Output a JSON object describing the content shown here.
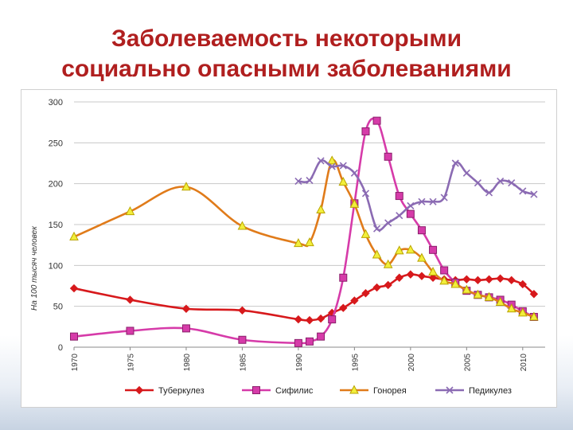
{
  "slide": {
    "title_line1": "Заболеваемость некоторыми",
    "title_line2": "социально опасными заболеваниями"
  },
  "chart_data": {
    "type": "line",
    "ylabel": "На 100 тысяч человек",
    "ylim": [
      0,
      300
    ],
    "yticks": [
      0,
      50,
      100,
      150,
      200,
      250,
      300
    ],
    "xlim": [
      1970,
      2012
    ],
    "xticks": [
      1970,
      1975,
      1980,
      1985,
      1990,
      1995,
      2000,
      2005,
      2010
    ],
    "grid": true,
    "legend_position": "bottom",
    "series": [
      {
        "name": "Туберкулез",
        "color": "#d7191c",
        "marker": "diamond",
        "points": [
          [
            1970,
            72
          ],
          [
            1975,
            58
          ],
          [
            1980,
            47
          ],
          [
            1985,
            45
          ],
          [
            1990,
            34
          ],
          [
            1991,
            33
          ],
          [
            1992,
            35
          ],
          [
            1993,
            42
          ],
          [
            1994,
            48
          ],
          [
            1995,
            57
          ],
          [
            1996,
            66
          ],
          [
            1997,
            73
          ],
          [
            1998,
            76
          ],
          [
            1999,
            85
          ],
          [
            2000,
            89
          ],
          [
            2001,
            87
          ],
          [
            2002,
            85
          ],
          [
            2003,
            83
          ],
          [
            2004,
            82
          ],
          [
            2005,
            83
          ],
          [
            2006,
            82
          ],
          [
            2007,
            83
          ],
          [
            2008,
            84
          ],
          [
            2009,
            82
          ],
          [
            2010,
            77
          ],
          [
            2011,
            65
          ]
        ]
      },
      {
        "name": "Сифилис",
        "color": "#d63ba9",
        "marker": "square",
        "points": [
          [
            1970,
            13
          ],
          [
            1975,
            20
          ],
          [
            1980,
            23
          ],
          [
            1985,
            9
          ],
          [
            1990,
            5
          ],
          [
            1991,
            7
          ],
          [
            1992,
            13
          ],
          [
            1993,
            34
          ],
          [
            1994,
            85
          ],
          [
            1995,
            176
          ],
          [
            1996,
            264
          ],
          [
            1997,
            277
          ],
          [
            1998,
            233
          ],
          [
            1999,
            185
          ],
          [
            2000,
            163
          ],
          [
            2001,
            143
          ],
          [
            2002,
            119
          ],
          [
            2003,
            94
          ],
          [
            2004,
            79
          ],
          [
            2005,
            69
          ],
          [
            2006,
            64
          ],
          [
            2007,
            61
          ],
          [
            2008,
            58
          ],
          [
            2009,
            52
          ],
          [
            2010,
            44
          ],
          [
            2011,
            37
          ]
        ]
      },
      {
        "name": "Гонорея",
        "color": "#e07b1a",
        "marker": "triangle",
        "points": [
          [
            1970,
            135
          ],
          [
            1975,
            166
          ],
          [
            1980,
            196
          ],
          [
            1985,
            148
          ],
          [
            1990,
            127
          ],
          [
            1991,
            128
          ],
          [
            1992,
            168
          ],
          [
            1993,
            228
          ],
          [
            1994,
            202
          ],
          [
            1995,
            175
          ],
          [
            1996,
            138
          ],
          [
            1997,
            113
          ],
          [
            1998,
            101
          ],
          [
            1999,
            118
          ],
          [
            2000,
            119
          ],
          [
            2001,
            109
          ],
          [
            2002,
            92
          ],
          [
            2003,
            81
          ],
          [
            2004,
            77
          ],
          [
            2005,
            70
          ],
          [
            2006,
            64
          ],
          [
            2007,
            61
          ],
          [
            2008,
            55
          ],
          [
            2009,
            47
          ],
          [
            2010,
            42
          ],
          [
            2011,
            37
          ]
        ]
      },
      {
        "name": "Педикулез",
        "color": "#8b6bb3",
        "marker": "x",
        "points": [
          [
            1990,
            203
          ],
          [
            1991,
            204
          ],
          [
            1992,
            228
          ],
          [
            1993,
            221
          ],
          [
            1994,
            222
          ],
          [
            1995,
            213
          ],
          [
            1996,
            188
          ],
          [
            1997,
            145
          ],
          [
            1998,
            152
          ],
          [
            1999,
            161
          ],
          [
            2000,
            173
          ],
          [
            2001,
            178
          ],
          [
            2002,
            178
          ],
          [
            2003,
            183
          ],
          [
            2004,
            225
          ],
          [
            2005,
            213
          ],
          [
            2006,
            201
          ],
          [
            2007,
            189
          ],
          [
            2008,
            203
          ],
          [
            2009,
            201
          ],
          [
            2010,
            191
          ],
          [
            2011,
            187
          ]
        ]
      }
    ]
  }
}
